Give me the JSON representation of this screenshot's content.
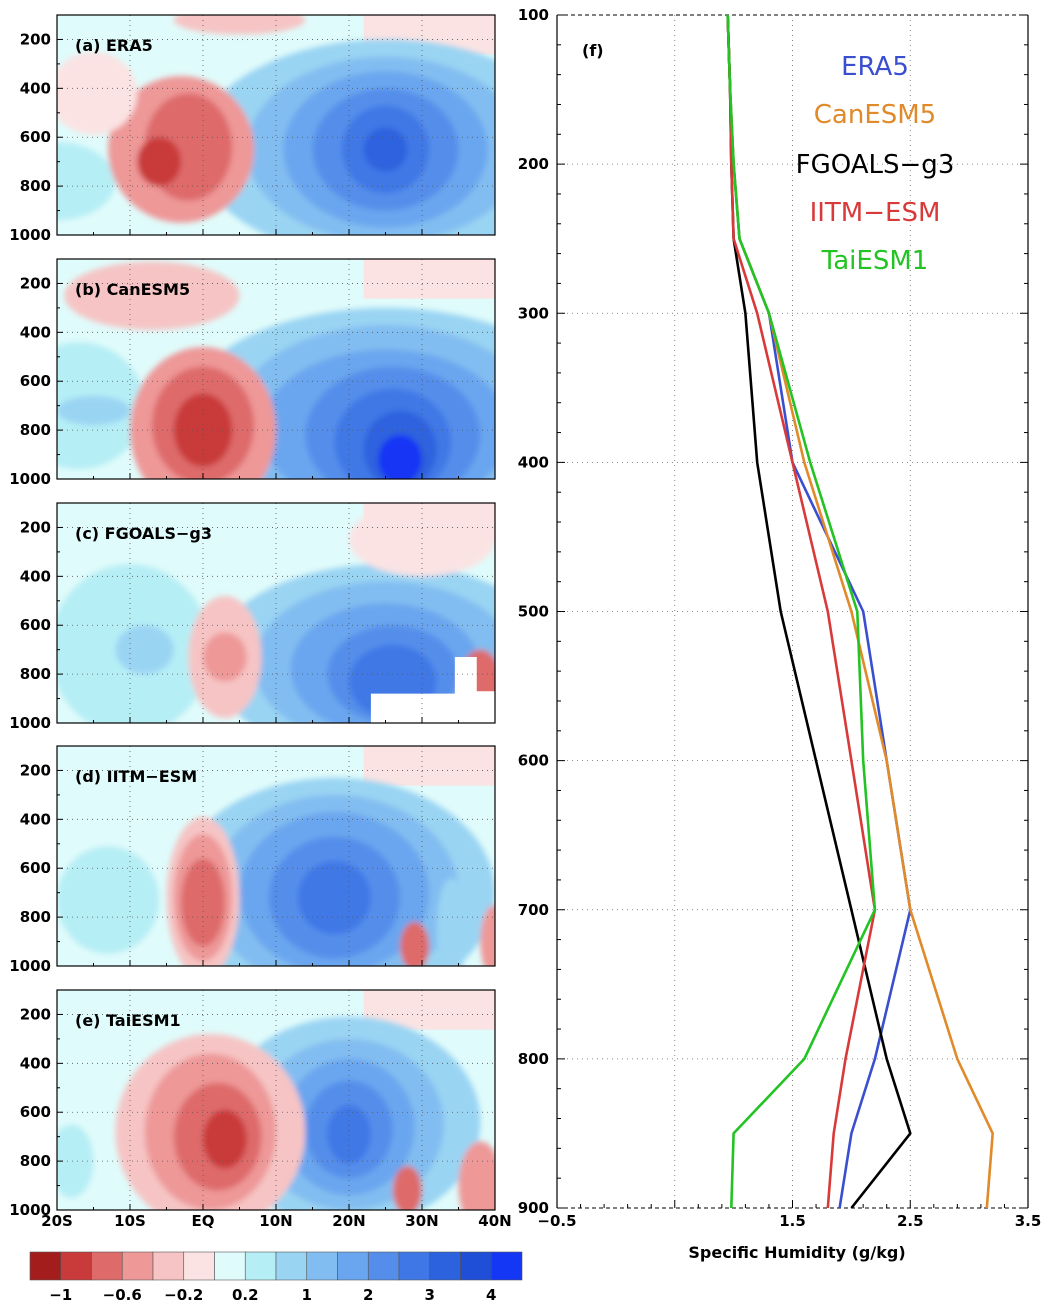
{
  "chart_data": [
    {
      "type": "heatmap",
      "panels": [
        {
          "label": "(a) ERA5"
        },
        {
          "label": "(b) CanESM5"
        },
        {
          "label": "(c) FGOALS−g3"
        },
        {
          "label": "(d) IITM−ESM"
        },
        {
          "label": "(e) TaiESM1"
        }
      ],
      "x_ticks": [
        "20S",
        "10S",
        "EQ",
        "10N",
        "20N",
        "30N",
        "40N"
      ],
      "x_range": [
        -20,
        40
      ],
      "y_ticks": [
        200,
        400,
        600,
        800,
        1000
      ],
      "y_range": [
        100,
        1000
      ],
      "y_inverted": true,
      "grid": true,
      "colorbar": {
        "labels": [
          "−1",
          "−0.6",
          "−0.2",
          "0.2",
          "1",
          "2",
          "3",
          "4"
        ],
        "colors": [
          "#a31d1d",
          "#c93a3a",
          "#de6a6a",
          "#ee9898",
          "#f6c4c4",
          "#fbe3e3",
          "#e0fbfb",
          "#b6eef5",
          "#9ad4f3",
          "#82bdf1",
          "#6aa6ef",
          "#548eea",
          "#3f78e6",
          "#2d62de",
          "#1f4fd6",
          "#1436f5"
        ]
      }
    },
    {
      "type": "line",
      "panel_label": "(f)",
      "xlabel": "Specific Humidity (g/kg)",
      "x_ticks": [
        "−0.5",
        "1.5",
        "2.5",
        "3.5"
      ],
      "xlim": [
        -0.5,
        3.5
      ],
      "y_ticks": [
        100,
        200,
        300,
        400,
        500,
        600,
        700,
        800,
        900
      ],
      "ylim": [
        100,
        900
      ],
      "y_inverted": true,
      "grid": true,
      "legend_position": "top-right",
      "series": [
        {
          "name": "ERA5",
          "color": "#3a4fd0",
          "x": [
            0.95,
            0.97,
            1.0,
            1.05,
            1.3,
            1.5,
            2.1,
            2.3,
            2.5,
            2.2,
            2.0,
            1.9
          ],
          "y": [
            100,
            150,
            200,
            250,
            300,
            400,
            500,
            600,
            700,
            800,
            850,
            900
          ]
        },
        {
          "name": "CanESM5",
          "color": "#e08a2a",
          "x": [
            0.95,
            0.97,
            1.0,
            1.05,
            1.3,
            1.6,
            2.0,
            2.3,
            2.5,
            2.9,
            3.2,
            3.15
          ],
          "y": [
            100,
            150,
            200,
            250,
            300,
            400,
            500,
            600,
            700,
            800,
            850,
            900
          ]
        },
        {
          "name": "FGOALS−g3",
          "color": "#000000",
          "x": [
            0.95,
            0.97,
            0.98,
            1.0,
            1.1,
            1.2,
            1.4,
            1.7,
            2.0,
            2.3,
            2.5,
            2.0
          ],
          "y": [
            100,
            150,
            200,
            250,
            300,
            400,
            500,
            600,
            700,
            800,
            850,
            900
          ]
        },
        {
          "name": "IITM−ESM",
          "color": "#d83a3a",
          "x": [
            0.95,
            0.97,
            0.98,
            1.0,
            1.2,
            1.5,
            1.8,
            2.0,
            2.2,
            1.95,
            1.85,
            1.8
          ],
          "y": [
            100,
            150,
            200,
            250,
            300,
            400,
            500,
            600,
            700,
            800,
            850,
            900
          ]
        },
        {
          "name": "TaiESM1",
          "color": "#22c322",
          "x": [
            0.95,
            0.97,
            1.0,
            1.05,
            1.3,
            1.65,
            2.05,
            2.1,
            2.2,
            1.6,
            1.0,
            0.98
          ],
          "y": [
            100,
            150,
            200,
            250,
            300,
            400,
            500,
            600,
            700,
            800,
            850,
            900
          ]
        }
      ]
    }
  ]
}
